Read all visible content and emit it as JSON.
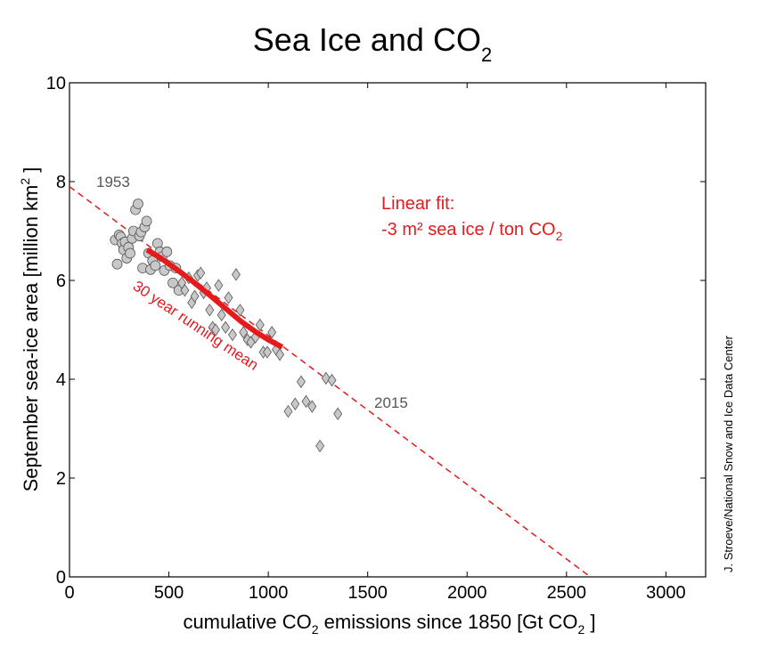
{
  "chart_data": {
    "type": "scatter",
    "title": "Sea Ice and CO",
    "title_subscript": "2",
    "xlabel": {
      "prefix": "cumulative CO",
      "sub1": "2",
      "middle": " emissions since 1850 [Gt CO",
      "sub2": "2",
      "suffix": " ]"
    },
    "ylabel": {
      "prefix": "September sea-ice area [million km",
      "sup": "2",
      "suffix": " ]"
    },
    "xlim": [
      0,
      3200
    ],
    "ylim": [
      0,
      10
    ],
    "x_ticks": [
      0,
      500,
      1000,
      1500,
      2000,
      2500,
      3000
    ],
    "y_ticks": [
      0,
      2,
      4,
      6,
      8,
      10
    ],
    "series": [
      {
        "name": "Early years (circles)",
        "marker": "circle",
        "color": "#c8c8c8",
        "points": [
          [
            230,
            6.82
          ],
          [
            240,
            6.33
          ],
          [
            250,
            6.92
          ],
          [
            258,
            6.88
          ],
          [
            265,
            6.75
          ],
          [
            272,
            6.62
          ],
          [
            280,
            6.78
          ],
          [
            288,
            6.45
          ],
          [
            297,
            6.67
          ],
          [
            305,
            6.55
          ],
          [
            315,
            6.85
          ],
          [
            322,
            7.0
          ],
          [
            332,
            7.43
          ],
          [
            345,
            7.55
          ],
          [
            352,
            6.9
          ],
          [
            360,
            6.98
          ],
          [
            368,
            6.25
          ],
          [
            378,
            7.08
          ],
          [
            388,
            7.2
          ],
          [
            398,
            6.55
          ],
          [
            408,
            6.22
          ],
          [
            418,
            6.4
          ],
          [
            432,
            6.3
          ],
          [
            443,
            6.75
          ],
          [
            455,
            6.58
          ],
          [
            465,
            6.48
          ],
          [
            477,
            6.2
          ],
          [
            490,
            6.58
          ],
          [
            505,
            6.3
          ],
          [
            520,
            5.95
          ],
          [
            535,
            6.25
          ],
          [
            550,
            5.8
          ]
        ]
      },
      {
        "name": "Recent years (diamonds)",
        "marker": "diamond",
        "color": "#c8c8c8",
        "points": [
          [
            565,
            5.95
          ],
          [
            580,
            5.8
          ],
          [
            600,
            6.05
          ],
          [
            615,
            5.55
          ],
          [
            630,
            5.68
          ],
          [
            645,
            6.1
          ],
          [
            660,
            6.15
          ],
          [
            675,
            5.75
          ],
          [
            690,
            5.85
          ],
          [
            705,
            5.4
          ],
          [
            720,
            5.05
          ],
          [
            735,
            5.0
          ],
          [
            750,
            5.9
          ],
          [
            765,
            5.3
          ],
          [
            785,
            5.05
          ],
          [
            800,
            5.65
          ],
          [
            820,
            4.9
          ],
          [
            838,
            6.12
          ],
          [
            858,
            5.4
          ],
          [
            875,
            4.95
          ],
          [
            895,
            4.8
          ],
          [
            912,
            4.75
          ],
          [
            935,
            4.85
          ],
          [
            958,
            5.1
          ],
          [
            975,
            4.55
          ],
          [
            995,
            4.55
          ],
          [
            1018,
            4.95
          ],
          [
            1040,
            4.6
          ],
          [
            1058,
            4.5
          ],
          [
            1100,
            3.35
          ],
          [
            1135,
            3.5
          ],
          [
            1165,
            3.95
          ],
          [
            1190,
            3.55
          ],
          [
            1220,
            3.45
          ],
          [
            1260,
            2.65
          ],
          [
            1290,
            4.02
          ],
          [
            1320,
            3.98
          ],
          [
            1350,
            3.3
          ]
        ]
      }
    ],
    "running_mean": {
      "name": "30 year running mean",
      "color": "#e41a1c",
      "points": [
        [
          390,
          6.62
        ],
        [
          460,
          6.45
        ],
        [
          540,
          6.22
        ],
        [
          620,
          5.98
        ],
        [
          700,
          5.72
        ],
        [
          780,
          5.45
        ],
        [
          860,
          5.18
        ],
        [
          940,
          4.95
        ],
        [
          1000,
          4.8
        ],
        [
          1070,
          4.65
        ]
      ]
    },
    "linear_fit": {
      "color": "#e41a1c",
      "points": [
        [
          0,
          7.9
        ],
        [
          2620,
          0.0
        ]
      ],
      "label_line1": "Linear fit:",
      "label_line2_prefix": "-3 m² sea ice / ton CO",
      "label_line2_sub": "2"
    },
    "annotations": {
      "start_year": "1953",
      "end_year": "2015",
      "running_mean_label": "30 year running mean"
    },
    "credit": "J. Stroeve/National Snow and Ice Data Center"
  }
}
